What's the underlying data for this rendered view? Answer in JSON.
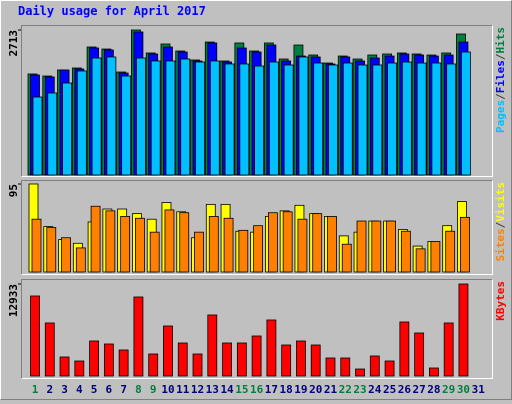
{
  "chart_data": [
    {
      "type": "bar",
      "title": "Daily usage for April 2017",
      "title_color": "#0000ff",
      "ylim": [
        0,
        2713
      ],
      "yticks": [
        2713
      ],
      "series": [
        {
          "name": "Hits",
          "color": "#008040",
          "values": [
            1890,
            1852,
            1965,
            2002,
            2395,
            2357,
            1927,
            2713,
            2283,
            2451,
            2320,
            2152,
            2488,
            2133,
            2470,
            2320,
            2470,
            2170,
            2432,
            2245,
            2095,
            2226,
            2170,
            2245,
            2264,
            2283,
            2264,
            2245,
            2283,
            2638,
            0
          ]
        },
        {
          "name": "Files",
          "color": "#0000ff",
          "values": [
            1871,
            1834,
            1965,
            1983,
            2376,
            2339,
            1908,
            2676,
            2264,
            2395,
            2301,
            2133,
            2470,
            2114,
            2376,
            2301,
            2432,
            2133,
            2226,
            2208,
            2077,
            2208,
            2133,
            2189,
            2226,
            2264,
            2245,
            2226,
            2245,
            2488,
            0
          ]
        },
        {
          "name": "Pages",
          "color": "#00c0ff",
          "values": [
            1459,
            1534,
            1721,
            1946,
            2189,
            2208,
            1852,
            2189,
            2133,
            2133,
            2170,
            2114,
            2133,
            2077,
            2077,
            2039,
            2114,
            2058,
            2208,
            2095,
            2058,
            2095,
            2058,
            2058,
            2095,
            2114,
            2095,
            2095,
            2077,
            2301,
            0
          ]
        }
      ]
    },
    {
      "type": "bar",
      "ylim": [
        0,
        95
      ],
      "yticks": [
        95
      ],
      "series": [
        {
          "name": "Visits",
          "color": "#ffff00",
          "values": [
            95,
            49,
            35,
            31,
            54,
            68,
            68,
            63,
            57,
            75,
            65,
            37,
            73,
            73,
            44,
            43,
            60,
            66,
            72,
            63,
            60,
            39,
            43,
            55,
            55,
            46,
            28,
            33,
            50,
            76,
            0
          ]
        },
        {
          "name": "Sites",
          "color": "#ff8000",
          "values": [
            57,
            48,
            37,
            26,
            71,
            66,
            60,
            58,
            43,
            67,
            64,
            43,
            60,
            58,
            45,
            50,
            64,
            65,
            57,
            63,
            60,
            30,
            55,
            55,
            55,
            44,
            25,
            33,
            44,
            59,
            0
          ]
        }
      ]
    },
    {
      "type": "bar",
      "ylim": [
        0,
        12933
      ],
      "yticks": [
        12933
      ],
      "series": [
        {
          "name": "KBytes",
          "color": "#ff0000",
          "values": [
            11248,
            7452,
            2671,
            2109,
            4921,
            4499,
            3656,
            11107,
            3093,
            7030,
            4640,
            3093,
            8577,
            4640,
            4640,
            5624,
            7874,
            4359,
            4921,
            4359,
            2531,
            2531,
            984,
            2812,
            2109,
            7592,
            6046,
            1125,
            7452,
            12933,
            0
          ]
        }
      ],
      "categories": [
        "1",
        "2",
        "3",
        "4",
        "5",
        "6",
        "7",
        "8",
        "9",
        "10",
        "11",
        "12",
        "13",
        "14",
        "15",
        "16",
        "17",
        "18",
        "19",
        "20",
        "21",
        "22",
        "23",
        "24",
        "25",
        "26",
        "27",
        "28",
        "29",
        "30",
        "31"
      ],
      "category_colors": [
        "#008040",
        "#000080",
        "#000080",
        "#000080",
        "#000080",
        "#000080",
        "#000080",
        "#008040",
        "#008040",
        "#000080",
        "#000080",
        "#000080",
        "#000080",
        "#000080",
        "#008040",
        "#008040",
        "#000080",
        "#000080",
        "#000080",
        "#000080",
        "#000080",
        "#008040",
        "#008040",
        "#000080",
        "#000080",
        "#000080",
        "#000080",
        "#000080",
        "#008040",
        "#008040",
        "#000080"
      ]
    }
  ],
  "legend_separator": "/"
}
